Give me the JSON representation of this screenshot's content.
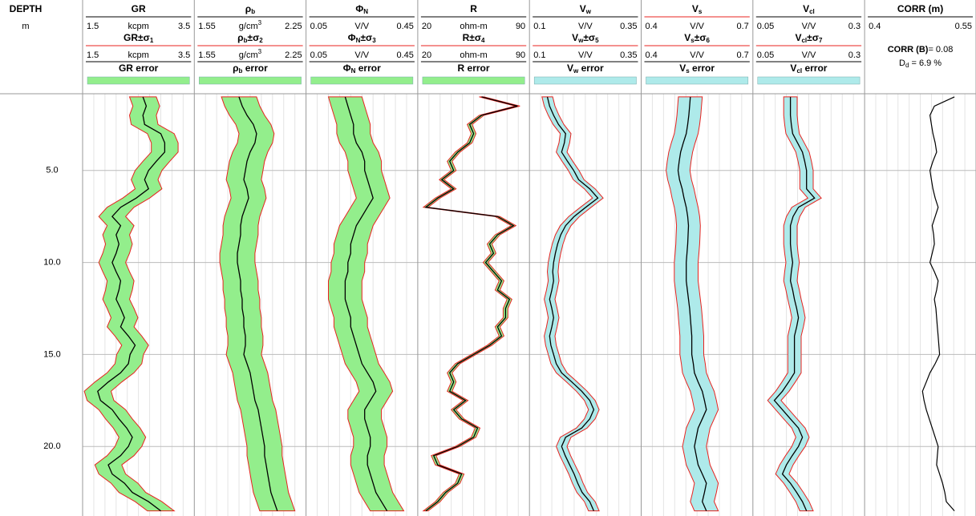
{
  "chart_data": {
    "type": "well-log",
    "depth_title": "DEPTH",
    "depth_unit": "m",
    "ylim": [
      0.83,
      23.78
    ],
    "yticks": [
      {
        "value": 5,
        "label": "5.0"
      },
      {
        "value": 10,
        "label": "10.0"
      },
      {
        "value": 15,
        "label": "15.0"
      },
      {
        "value": 20,
        "label": "20.0"
      }
    ],
    "grid": true,
    "curve_color": "#000000",
    "band_edge_color": "#e8231f",
    "depth": [
      1,
      1.5,
      2,
      2.5,
      3,
      3.5,
      4,
      4.5,
      5,
      5.5,
      6,
      6.5,
      7,
      7.5,
      8,
      8.5,
      9,
      9.5,
      10,
      10.5,
      11,
      11.5,
      12,
      12.5,
      13,
      13.5,
      14,
      14.5,
      15,
      15.5,
      16,
      16.5,
      17,
      17.5,
      18,
      18.5,
      19,
      19.5,
      20,
      20.5,
      21,
      21.5,
      22,
      22.5,
      23,
      23.5
    ],
    "tracks": [
      {
        "title": [
          {
            "text": "GR"
          }
        ],
        "title_rule_color": "#000000",
        "unit": [
          {
            "text": "kcpm"
          }
        ],
        "xlim": [
          1.5,
          3.5
        ],
        "title2": [
          {
            "text": "GR±σ"
          },
          {
            "text": "1",
            "shift": "sub"
          }
        ],
        "error_label": [
          {
            "text": "GR error"
          }
        ],
        "band_color": "#93ee8c",
        "error": 0.24,
        "values": [
          2.58,
          2.64,
          2.58,
          2.61,
          2.9,
          2.97,
          2.97,
          2.82,
          2.68,
          2.61,
          2.68,
          2.46,
          2.18,
          2.03,
          2.18,
          2.1,
          2.15,
          2.1,
          2.03,
          2.1,
          2.18,
          2.15,
          2.1,
          2.18,
          2.25,
          2.18,
          2.32,
          2.44,
          2.35,
          2.32,
          2.18,
          1.96,
          1.77,
          1.82,
          2.03,
          2.15,
          2.29,
          2.39,
          2.32,
          2.18,
          1.96,
          2.03,
          2.25,
          2.39,
          2.68,
          2.9
        ]
      },
      {
        "title": [
          {
            "text": "ρ"
          },
          {
            "text": "b",
            "shift": "sub"
          }
        ],
        "title_rule_color": "#000000",
        "unit": [
          {
            "text": "g/cm"
          },
          {
            "text": "3",
            "shift": "super"
          }
        ],
        "xlim": [
          1.55,
          2.25
        ],
        "title2": [
          {
            "text": "ρ"
          },
          {
            "text": "b",
            "shift": "sub"
          },
          {
            "text": "±σ"
          },
          {
            "text": "2",
            "shift": "sub"
          }
        ],
        "error_label": [
          {
            "text": "ρ"
          },
          {
            "text": "b",
            "shift": "sub"
          },
          {
            "text": " error"
          }
        ],
        "band_color": "#93ee8c",
        "error": 0.11,
        "values": [
          1.83,
          1.85,
          1.88,
          1.92,
          1.94,
          1.93,
          1.9,
          1.88,
          1.87,
          1.86,
          1.88,
          1.89,
          1.87,
          1.85,
          1.84,
          1.84,
          1.83,
          1.82,
          1.82,
          1.83,
          1.84,
          1.84,
          1.85,
          1.85,
          1.86,
          1.86,
          1.87,
          1.87,
          1.86,
          1.88,
          1.9,
          1.91,
          1.92,
          1.93,
          1.95,
          1.96,
          1.97,
          1.98,
          1.99,
          1.99,
          2.0,
          2.01,
          2.02,
          2.03,
          2.05,
          2.07
        ]
      },
      {
        "title": [
          {
            "text": "Φ"
          },
          {
            "text": "N",
            "shift": "sub"
          }
        ],
        "title_rule_color": "#000000",
        "unit": [
          {
            "text": "V/V"
          }
        ],
        "xlim": [
          0.05,
          0.45
        ],
        "title2": [
          {
            "text": "Φ"
          },
          {
            "text": "N",
            "shift": "sub"
          },
          {
            "text": "±σ"
          },
          {
            "text": "3",
            "shift": "sub"
          }
        ],
        "error_label": [
          {
            "text": "Φ"
          },
          {
            "text": "N",
            "shift": "sub"
          },
          {
            "text": " error"
          }
        ],
        "band_color": "#93ee8c",
        "error": 0.06,
        "values": [
          0.19,
          0.2,
          0.21,
          0.22,
          0.22,
          0.23,
          0.25,
          0.26,
          0.26,
          0.27,
          0.28,
          0.29,
          0.27,
          0.25,
          0.23,
          0.22,
          0.21,
          0.21,
          0.2,
          0.2,
          0.19,
          0.19,
          0.19,
          0.2,
          0.21,
          0.21,
          0.22,
          0.23,
          0.24,
          0.25,
          0.27,
          0.29,
          0.3,
          0.28,
          0.26,
          0.26,
          0.27,
          0.28,
          0.28,
          0.27,
          0.27,
          0.28,
          0.29,
          0.3,
          0.32,
          0.34
        ]
      },
      {
        "title": [
          {
            "text": "R"
          }
        ],
        "title_rule_color": "#000000",
        "unit": [
          {
            "text": "ohm-m"
          }
        ],
        "xlim": [
          20,
          90
        ],
        "title2": [
          {
            "text": "R±σ"
          },
          {
            "text": "4",
            "shift": "sub"
          }
        ],
        "error_label": [
          {
            "text": "R error"
          }
        ],
        "band_color": "#93ee8c",
        "error": 1.5,
        "values": [
          60,
          82.5,
          60,
          52.5,
          55,
          52.5,
          45,
          40,
          42.5,
          35,
          42.5,
          32.5,
          25,
          70,
          80,
          70,
          65,
          67.5,
          62.5,
          67.5,
          72.5,
          70,
          77.5,
          75,
          75,
          70,
          72.5,
          65,
          55,
          45,
          40,
          42.5,
          40,
          50,
          42.5,
          47.5,
          57.5,
          55,
          45,
          30,
          32.5,
          47.5,
          45,
          37.5,
          32.5,
          25
        ]
      },
      {
        "title": [
          {
            "text": "V"
          },
          {
            "text": "w",
            "shift": "sub"
          }
        ],
        "title_rule_color": "#000000",
        "unit": [
          {
            "text": "V/V"
          }
        ],
        "xlim": [
          0.1,
          0.35
        ],
        "title2": [
          {
            "text": "V"
          },
          {
            "text": "w",
            "shift": "sub"
          },
          {
            "text": "±σ"
          },
          {
            "text": "5",
            "shift": "sub"
          }
        ],
        "error_label": [
          {
            "text": "V"
          },
          {
            "text": "w",
            "shift": "sub"
          },
          {
            "text": " error"
          }
        ],
        "band_color": "#aeeaea",
        "error": 0.012,
        "values": [
          0.14,
          0.145,
          0.154,
          0.165,
          0.181,
          0.178,
          0.172,
          0.185,
          0.199,
          0.21,
          0.235,
          0.253,
          0.226,
          0.2,
          0.181,
          0.17,
          0.163,
          0.158,
          0.154,
          0.152,
          0.154,
          0.15,
          0.145,
          0.15,
          0.154,
          0.15,
          0.145,
          0.148,
          0.154,
          0.16,
          0.172,
          0.195,
          0.217,
          0.235,
          0.244,
          0.235,
          0.217,
          0.181,
          0.172,
          0.18,
          0.19,
          0.2,
          0.208,
          0.218,
          0.235,
          0.244
        ]
      },
      {
        "title": [
          {
            "text": "V"
          },
          {
            "text": "s",
            "shift": "sub"
          }
        ],
        "title_rule_color": "#e8231f",
        "unit": [
          {
            "text": "V/V"
          }
        ],
        "xlim": [
          0.4,
          0.7
        ],
        "title2": [
          {
            "text": "V"
          },
          {
            "text": "s",
            "shift": "sub"
          },
          {
            "text": "±σ"
          },
          {
            "text": "6",
            "shift": "sub"
          }
        ],
        "error_label": [
          {
            "text": "V"
          },
          {
            "text": "s",
            "shift": "sub"
          },
          {
            "text": " error"
          }
        ],
        "band_color": "#aeeaea",
        "error": 0.032,
        "values": [
          0.532,
          0.53,
          0.528,
          0.525,
          0.521,
          0.513,
          0.506,
          0.502,
          0.499,
          0.503,
          0.51,
          0.515,
          0.521,
          0.525,
          0.527,
          0.526,
          0.525,
          0.523,
          0.521,
          0.521,
          0.521,
          0.524,
          0.527,
          0.53,
          0.532,
          0.534,
          0.536,
          0.536,
          0.536,
          0.54,
          0.543,
          0.553,
          0.564,
          0.57,
          0.575,
          0.564,
          0.553,
          0.548,
          0.543,
          0.548,
          0.553,
          0.564,
          0.575,
          0.57,
          0.564,
          0.575
        ]
      },
      {
        "title": [
          {
            "text": "V"
          },
          {
            "text": "cl",
            "shift": "sub"
          }
        ],
        "title_rule_color": "#000000",
        "unit": [
          {
            "text": "V/V"
          }
        ],
        "xlim": [
          0.05,
          0.3
        ],
        "title2": [
          {
            "text": "V"
          },
          {
            "text": "cl",
            "shift": "sub"
          },
          {
            "text": "±σ"
          },
          {
            "text": "7",
            "shift": "sub"
          }
        ],
        "error_label": [
          {
            "text": "V"
          },
          {
            "text": "cl",
            "shift": "sub"
          },
          {
            "text": " error"
          }
        ],
        "band_color": "#aeeaea",
        "error": 0.015,
        "values": [
          0.134,
          0.134,
          0.134,
          0.136,
          0.139,
          0.15,
          0.161,
          0.166,
          0.17,
          0.17,
          0.17,
          0.188,
          0.152,
          0.14,
          0.134,
          0.134,
          0.134,
          0.136,
          0.139,
          0.136,
          0.134,
          0.139,
          0.143,
          0.148,
          0.152,
          0.148,
          0.143,
          0.143,
          0.143,
          0.143,
          0.143,
          0.13,
          0.116,
          0.098,
          0.116,
          0.134,
          0.152,
          0.161,
          0.152,
          0.138,
          0.125,
          0.116,
          0.134,
          0.148,
          0.161,
          0.17
        ]
      }
    ],
    "corr": {
      "title": "CORR (m)",
      "title_rule_color": "#000000",
      "xlim": [
        0.4,
        0.55
      ],
      "stat_label": "CORR (B)",
      "stat_text": "= 0.08",
      "dd_symbol": "D",
      "dd_sub": "d",
      "dd_text": " = 6.9 %",
      "values": [
        0.521,
        0.494,
        0.488,
        0.49,
        0.492,
        0.495,
        0.497,
        0.492,
        0.488,
        0.49,
        0.492,
        0.495,
        0.499,
        0.495,
        0.491,
        0.493,
        0.494,
        0.491,
        0.488,
        0.494,
        0.499,
        0.497,
        0.494,
        0.496,
        0.497,
        0.498,
        0.499,
        0.5,
        0.501,
        0.495,
        0.488,
        0.483,
        0.478,
        0.48,
        0.483,
        0.487,
        0.491,
        0.495,
        0.499,
        0.498,
        0.497,
        0.501,
        0.505,
        0.508,
        0.51,
        0.521
      ]
    }
  }
}
